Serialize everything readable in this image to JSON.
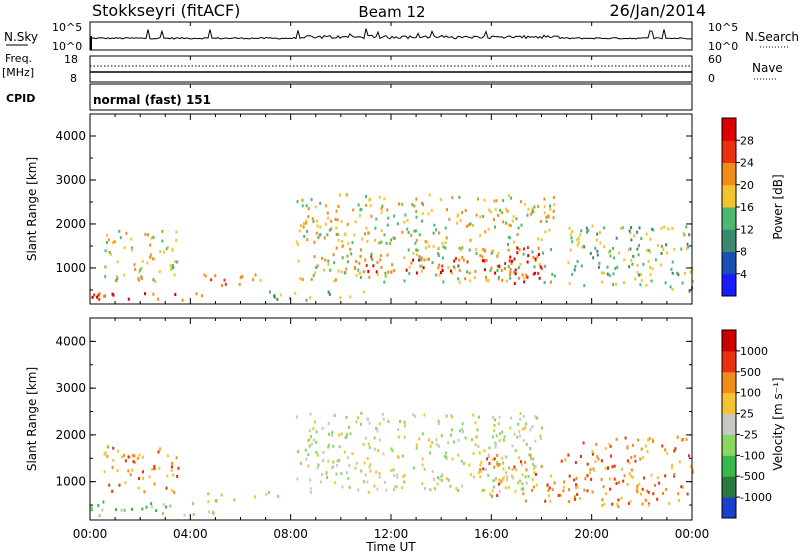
{
  "header": {
    "radar_title": "Stokkseyri (fitACF)",
    "beam_label": "Beam 12",
    "date_label": "26/Jan/2014"
  },
  "top_panels": {
    "nsky_label": "N.Sky",
    "nsky_ticks": [
      "10^5",
      "10^0"
    ],
    "nsearch_label": "N.Search",
    "nsearch_ticks": [
      "10^5",
      "10^0"
    ],
    "freq_label": "Freq.",
    "freq_unit": "[MHz]",
    "freq_ticks": [
      "18",
      "8"
    ],
    "nave_label": "Nave",
    "nave_ticks": [
      "60",
      "0"
    ],
    "cpid_label": "CPID",
    "cpid_text": "normal (fast) 151"
  },
  "chart_data": [
    {
      "type": "heatmap",
      "name": "power",
      "ylabel": "Slant Range [km]",
      "ylim": [
        180,
        4500
      ],
      "yticks": [
        "1000",
        "2000",
        "3000",
        "4000"
      ],
      "colorbar_label": "Power [dB]",
      "colorbar_ticks": [
        "4",
        "8",
        "12",
        "16",
        "20",
        "24",
        "28"
      ],
      "colorbar_colors": [
        "#1a1aff",
        "#1b4fb8",
        "#3a8a70",
        "#4cb870",
        "#f4c430",
        "#f08c18",
        "#e63010",
        "#dd0000"
      ],
      "echo_regions": [
        {
          "t0": 0.0,
          "t1": 5.0,
          "r0": 300,
          "r1": 500,
          "level": 6
        },
        {
          "t0": 0.5,
          "t1": 3.5,
          "r0": 700,
          "r1": 1900,
          "level": 4
        },
        {
          "t0": 4.5,
          "t1": 7.0,
          "r0": 600,
          "r1": 900,
          "level": 5
        },
        {
          "t0": 7.0,
          "t1": 11.0,
          "r0": 300,
          "r1": 500,
          "level": 3
        },
        {
          "t0": 8.2,
          "t1": 18.5,
          "r0": 700,
          "r1": 2700,
          "level": 4
        },
        {
          "t0": 10.5,
          "t1": 17.0,
          "r0": 900,
          "r1": 1300,
          "level": 6
        },
        {
          "t0": 16.8,
          "t1": 18.0,
          "r0": 600,
          "r1": 1500,
          "level": 7
        },
        {
          "t0": 19.0,
          "t1": 24.0,
          "r0": 500,
          "r1": 2000,
          "level": 3
        }
      ]
    },
    {
      "type": "heatmap",
      "name": "velocity",
      "ylabel": "Slant Range [km]",
      "ylim": [
        180,
        4500
      ],
      "yticks": [
        "1000",
        "2000",
        "3000",
        "4000"
      ],
      "colorbar_label": "Velocity [m s⁻¹]",
      "colorbar_ticks": [
        "1000",
        "500",
        "100",
        "25",
        "-25",
        "-100",
        "-500",
        "-1000"
      ],
      "colorbar_colors": [
        "#1a3fd0",
        "#2a7a40",
        "#38b84a",
        "#88d860",
        "#c8c8c4",
        "#f4c430",
        "#f08c18",
        "#e63010",
        "#cc0000"
      ],
      "echo_regions": [
        {
          "t0": 0.0,
          "t1": 5.0,
          "r0": 300,
          "r1": 600,
          "level": 3
        },
        {
          "t0": 0.5,
          "t1": 3.5,
          "r0": 800,
          "r1": 1800,
          "level": 6
        },
        {
          "t0": 4.5,
          "t1": 7.5,
          "r0": 600,
          "r1": 800,
          "level": 4
        },
        {
          "t0": 8.2,
          "t1": 18.0,
          "r0": 800,
          "r1": 2500,
          "level": 4
        },
        {
          "t0": 15.5,
          "t1": 19.5,
          "r0": 600,
          "r1": 1600,
          "level": 6
        },
        {
          "t0": 19.5,
          "t1": 24.0,
          "r0": 500,
          "r1": 2000,
          "level": 6
        }
      ]
    }
  ],
  "x_axis": {
    "label": "Time UT",
    "ticks": [
      "00:00",
      "04:00",
      "08:00",
      "12:00",
      "16:00",
      "20:00",
      "00:00"
    ]
  }
}
